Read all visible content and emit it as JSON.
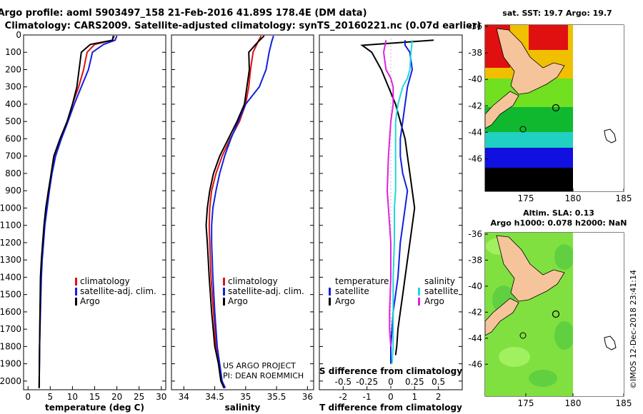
{
  "title_line1": "Argo profile: aoml 5903497_158 21-Feb-2016 41.89S 178.4E (DM data)",
  "title_line2": "Climatology: CARS2009. Satellite-adjusted climatology: synTS_20160221.nc (0.07d earlier)",
  "credit_line1": "US ARGO PROJECT",
  "credit_line2": "PI: DEAN ROEMMICH",
  "imos_stamp": "©IMOS 12-Dec-2018 23:41:14",
  "colors": {
    "argo": "#000000",
    "clim": "#e01010",
    "sat": "#1020e0",
    "sat_s": "#20d8d8",
    "argo_s": "#e020e0"
  },
  "chart_data": [
    {
      "type": "line",
      "xlabel": "temperature (deg C)",
      "xlim": [
        -1,
        31
      ],
      "ylim": [
        0,
        2050
      ],
      "x_ticks": [
        0,
        5,
        10,
        15,
        20,
        25,
        30
      ],
      "y_ticks": [
        0,
        100,
        200,
        300,
        400,
        500,
        600,
        700,
        800,
        900,
        1000,
        1100,
        1200,
        1300,
        1400,
        1500,
        1600,
        1700,
        1800,
        1900,
        2000
      ],
      "legend": [
        "climatology",
        "satellite-adj. clim.",
        "Argo"
      ],
      "series": [
        {
          "name": "climatology",
          "color": "#e01010",
          "x": [
            19.4,
            19.0,
            15.0,
            13.3,
            12.5,
            11.4,
            10.0,
            8.9,
            7.4,
            6.0,
            5.3,
            4.6,
            4.1,
            3.7,
            3.4,
            3.1,
            2.9,
            2.7,
            2.6,
            2.5
          ],
          "y": [
            5,
            30,
            55,
            100,
            200,
            300,
            400,
            500,
            600,
            700,
            800,
            900,
            1000,
            1100,
            1200,
            1300,
            1400,
            1600,
            1800,
            2040
          ]
        },
        {
          "name": "satellite-adj. clim.",
          "color": "#1020e0",
          "x": [
            20.0,
            19.6,
            17.0,
            14.5,
            13.6,
            12.0,
            10.4,
            9.0,
            7.5,
            6.2,
            5.4,
            4.8,
            4.3,
            3.8,
            3.5,
            3.2,
            3.0,
            2.8,
            2.6,
            2.5
          ],
          "y": [
            5,
            30,
            55,
            100,
            200,
            300,
            400,
            500,
            600,
            700,
            800,
            900,
            1000,
            1100,
            1200,
            1300,
            1400,
            1600,
            1800,
            2040
          ]
        },
        {
          "name": "Argo",
          "color": "#000000",
          "x": [
            19.2,
            19.0,
            14.0,
            12.0,
            11.5,
            11.0,
            10.0,
            8.8,
            7.2,
            5.8,
            5.2,
            4.6,
            4.0,
            3.6,
            3.3,
            3.0,
            2.8,
            2.7,
            2.6,
            2.5
          ],
          "y": [
            5,
            30,
            55,
            100,
            200,
            300,
            400,
            500,
            600,
            700,
            800,
            900,
            1000,
            1100,
            1200,
            1300,
            1400,
            1600,
            1800,
            2040
          ]
        }
      ]
    },
    {
      "type": "line",
      "xlabel": "salinity",
      "xlim": [
        33.8,
        36.1
      ],
      "ylim": [
        0,
        2050
      ],
      "x_ticks": [
        34,
        34.5,
        35,
        35.5,
        36
      ],
      "legend": [
        "climatology",
        "satellite-adj. clim.",
        "Argo"
      ],
      "series": [
        {
          "name": "climatology",
          "color": "#e01010",
          "x": [
            35.25,
            35.2,
            35.12,
            35.08,
            35.05,
            35.0,
            34.9,
            34.75,
            34.62,
            34.52,
            34.45,
            34.42,
            34.41,
            34.42,
            34.44,
            34.48,
            34.52,
            34.56,
            34.6,
            34.66
          ],
          "y": [
            5,
            40,
            100,
            200,
            300,
            400,
            500,
            600,
            700,
            800,
            900,
            1000,
            1100,
            1200,
            1400,
            1600,
            1800,
            1900,
            2000,
            2040
          ]
        },
        {
          "name": "satellite-adj. clim.",
          "color": "#1020e0",
          "x": [
            35.45,
            35.42,
            35.38,
            35.33,
            35.22,
            35.0,
            34.88,
            34.76,
            34.66,
            34.58,
            34.52,
            34.47,
            34.45,
            34.45,
            34.47,
            34.5,
            34.54,
            34.58,
            34.62,
            34.67
          ],
          "y": [
            5,
            40,
            100,
            200,
            300,
            400,
            500,
            600,
            700,
            800,
            900,
            1000,
            1100,
            1200,
            1400,
            1600,
            1800,
            1900,
            2000,
            2040
          ]
        },
        {
          "name": "Argo",
          "color": "#000000",
          "x": [
            35.3,
            35.2,
            35.05,
            35.06,
            35.02,
            34.98,
            34.86,
            34.72,
            34.58,
            34.48,
            34.42,
            34.38,
            34.36,
            34.38,
            34.41,
            34.45,
            34.5,
            34.56,
            34.6,
            34.65
          ],
          "y": [
            5,
            40,
            100,
            200,
            300,
            400,
            500,
            600,
            700,
            800,
            900,
            1000,
            1100,
            1200,
            1400,
            1600,
            1800,
            1900,
            2000,
            2040
          ]
        }
      ]
    },
    {
      "type": "line",
      "xlabel": "T difference from climatology",
      "xlabel_top": "S difference from climatology",
      "xlim": [
        -3,
        3
      ],
      "ylim": [
        0,
        2050
      ],
      "x_ticks": [
        -2,
        -1,
        0,
        1,
        2
      ],
      "x_ticks_top": [
        -0.5,
        -0.25,
        0,
        0.25,
        0.5
      ],
      "legend": [
        "temperature",
        "satellite",
        "Argo",
        "salinity",
        "satellite",
        "Argo"
      ],
      "series": [
        {
          "name": "temperature Argo",
          "color": "#000000",
          "x": [
            1.8,
            -1.2,
            -0.8,
            -0.4,
            -0.1,
            0.2,
            0.4,
            0.6,
            0.7,
            0.8,
            1.0,
            0.9,
            0.8,
            0.7,
            0.6,
            0.5,
            0.4,
            0.3,
            0.25,
            0.2
          ],
          "y": [
            30,
            60,
            100,
            200,
            300,
            400,
            500,
            600,
            700,
            800,
            1000,
            1100,
            1200,
            1300,
            1400,
            1500,
            1600,
            1700,
            1800,
            1850
          ]
        },
        {
          "name": "temperature satellite",
          "color": "#1020e0",
          "x": [
            0.6,
            0.6,
            0.8,
            0.9,
            0.7,
            0.6,
            0.5,
            0.4,
            0.4,
            0.5,
            0.7,
            0.6,
            0.5,
            0.4,
            0.3,
            0.2,
            0.1,
            0.05,
            0.0,
            0.0
          ],
          "y": [
            30,
            60,
            100,
            200,
            300,
            400,
            500,
            600,
            700,
            800,
            900,
            1000,
            1100,
            1200,
            1400,
            1500,
            1600,
            1700,
            1800,
            1900
          ]
        },
        {
          "name": "salinity satellite",
          "color": "#20d8d8",
          "x": [
            0.9,
            0.85,
            0.8,
            0.7,
            0.5,
            0.3,
            0.2,
            0.2,
            0.2,
            0.15,
            0.15,
            0.1,
            0.1,
            0.1,
            0.05
          ],
          "y": [
            30,
            100,
            200,
            250,
            300,
            400,
            500,
            700,
            900,
            1000,
            1200,
            1400,
            1600,
            1800,
            1900
          ]
        },
        {
          "name": "salinity Argo",
          "color": "#e020e0",
          "x": [
            -0.2,
            -0.3,
            -0.2,
            0.0,
            0.1,
            0.1,
            0.0,
            -0.1,
            -0.15,
            -0.1,
            0.0,
            0.0,
            -0.05,
            -0.05,
            0.0
          ],
          "y": [
            30,
            100,
            200,
            250,
            300,
            400,
            500,
            700,
            900,
            1000,
            1200,
            1400,
            1600,
            1700,
            1800
          ]
        }
      ]
    }
  ],
  "map_top": {
    "title": "sat. SST: 19.7 Argo: 19.7",
    "x_ticks": [
      "175",
      "180",
      "185"
    ],
    "y_ticks": [
      "-36",
      "-38",
      "-40",
      "-42",
      "-44",
      "-46"
    ]
  },
  "map_bottom": {
    "title_line1": "Altim. SLA: 0.13",
    "title_line2": "Argo h1000: 0.078 h2000: NaN",
    "x_ticks": [
      "175",
      "180",
      "185"
    ],
    "y_ticks": [
      "-36",
      "-38",
      "-40",
      "-42",
      "-44",
      "-46"
    ]
  }
}
